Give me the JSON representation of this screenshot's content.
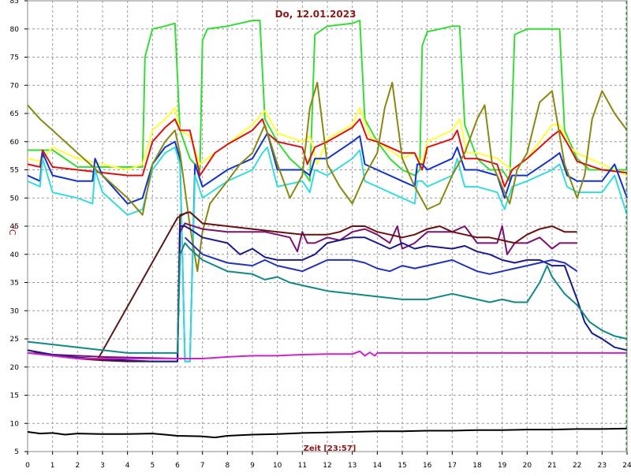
{
  "chart_data": {
    "type": "line",
    "title": "Do, 12.01.2023",
    "xlabel": "Zeit [23:57]",
    "ylabel": "°C",
    "xlim": [
      0,
      24
    ],
    "ylim": [
      5,
      85
    ],
    "x_ticks": [
      "0",
      "1",
      "2",
      "3",
      "4",
      "5",
      "6",
      "7",
      "8",
      "9",
      "10",
      "11",
      "12",
      "13",
      "14",
      "15",
      "16",
      "17",
      "18",
      "19",
      "20",
      "21",
      "22",
      "23",
      "24"
    ],
    "y_ticks": [
      "5",
      "10",
      "15",
      "20",
      "25",
      "30",
      "35",
      "40",
      "45",
      "50",
      "55",
      "60",
      "65",
      "70",
      "75",
      "80",
      "85"
    ],
    "grid": true,
    "series": [
      {
        "color": "#33dd33",
        "x": [
          0,
          1,
          2,
          3,
          4,
          4.6,
          4.7,
          5,
          5.5,
          5.9,
          6.1,
          6.5,
          6.9,
          7.0,
          7.2,
          8,
          9,
          9.3,
          9.5,
          10,
          10.5,
          11,
          11.3,
          11.5,
          12,
          13,
          13.3,
          13.5,
          14,
          14.5,
          15,
          15.5,
          15.7,
          15.8,
          16,
          16.5,
          17,
          17.3,
          17.5,
          18,
          18.5,
          19,
          19.3,
          19.5,
          20,
          21,
          21.3,
          21.5,
          22,
          22.5,
          23,
          23.5,
          24
        ],
        "y": [
          58.5,
          58.5,
          55.5,
          55.5,
          55.5,
          55.5,
          75,
          80,
          80.5,
          81,
          62,
          57,
          55,
          78,
          80,
          80.5,
          81.5,
          81.5,
          64,
          60,
          57,
          55,
          53,
          79,
          80.5,
          81,
          81.5,
          64,
          60,
          57,
          55,
          54,
          55,
          77,
          79.5,
          80,
          80.5,
          80.5,
          63,
          57,
          55,
          55,
          53,
          79,
          80,
          80,
          80,
          62,
          57,
          55,
          55,
          55,
          55
        ]
      },
      {
        "color": "#ffff33",
        "x": [
          0,
          0.5,
          1,
          2,
          3,
          4,
          4.6,
          5,
          5.5,
          5.9,
          6.1,
          6.5,
          6.9,
          7.5,
          8,
          9,
          9.5,
          10,
          11,
          11.3,
          11.6,
          12,
          13,
          13.3,
          13.7,
          14,
          15,
          15.5,
          15.8,
          16,
          17,
          17.3,
          17.6,
          18,
          18.8,
          19.1,
          19.4,
          20,
          21,
          21.3,
          21.7,
          22,
          23,
          23.5,
          24
        ],
        "y": [
          57,
          56.5,
          59,
          57,
          56,
          55,
          56,
          62,
          64,
          66,
          62,
          61,
          56,
          58,
          59.5,
          63,
          65.5,
          61.5,
          60,
          61,
          56,
          60.5,
          63,
          66,
          61,
          60,
          57,
          58,
          56,
          60,
          62,
          64,
          58,
          58,
          57,
          56,
          55,
          57,
          63,
          63,
          59,
          58,
          56,
          55,
          54
        ]
      },
      {
        "color": "#dd1111",
        "x": [
          0,
          0.5,
          0.6,
          1,
          2,
          3,
          4,
          4.6,
          5,
          5.5,
          5.9,
          6.1,
          6.5,
          6.9,
          7.5,
          8,
          9,
          9.4,
          9.6,
          10,
          11,
          11.2,
          11.5,
          12,
          13,
          13.3,
          13.6,
          14,
          15,
          15.5,
          15.8,
          16,
          17,
          17.2,
          17.5,
          18,
          18.8,
          19.1,
          19.4,
          20,
          21,
          21.3,
          21.7,
          22,
          23,
          24
        ],
        "y": [
          56,
          55.5,
          58.5,
          55.5,
          55,
          54.5,
          54,
          54,
          60,
          62.5,
          64,
          62,
          62,
          54,
          58,
          59.5,
          62,
          64,
          61.5,
          60,
          59,
          56,
          59,
          60,
          62.5,
          64,
          60.5,
          60,
          58,
          58,
          55,
          59,
          60.5,
          62,
          57,
          57,
          56,
          52,
          55,
          57,
          61,
          62,
          59,
          56.5,
          55,
          54.5
        ]
      },
      {
        "color": "#1133cc",
        "x": [
          0,
          0.5,
          0.6,
          1,
          2,
          2.6,
          2.7,
          3,
          4,
          4.6,
          5,
          5.5,
          5.9,
          6.1,
          6.3,
          6.5,
          6.7,
          7,
          8,
          9,
          9.4,
          9.6,
          10,
          11,
          11.3,
          11.5,
          12,
          13,
          13.3,
          13.5,
          14,
          15,
          15.5,
          15.6,
          15.8,
          16,
          17,
          17.2,
          17.5,
          18,
          18.8,
          19.1,
          19.4,
          20,
          21,
          21.3,
          21.6,
          22,
          23,
          23.5,
          24
        ],
        "y": [
          54,
          53,
          58,
          54,
          53,
          53,
          57,
          54,
          49,
          50,
          56,
          59,
          60,
          57,
          21,
          21,
          56,
          52,
          55,
          57,
          60,
          61.5,
          55,
          55,
          54,
          57,
          57,
          60,
          61,
          56,
          55,
          53,
          52,
          56,
          56,
          55,
          57,
          59,
          55,
          55,
          54,
          50,
          54,
          54,
          57,
          58,
          54,
          53,
          53,
          56,
          50
        ]
      },
      {
        "color": "#33dddd",
        "x": [
          0,
          0.5,
          0.6,
          1,
          2,
          2.6,
          2.7,
          3,
          4,
          4.6,
          5,
          5.5,
          5.9,
          6.1,
          6.3,
          6.5,
          6.7,
          7,
          8,
          9,
          9.4,
          9.6,
          10,
          11,
          11.3,
          11.5,
          12,
          13,
          13.3,
          13.5,
          14,
          15,
          15.5,
          15.6,
          15.8,
          16,
          17,
          17.2,
          17.5,
          18,
          18.8,
          19.1,
          19.4,
          20,
          21,
          21.3,
          21.6,
          22,
          23,
          23.5,
          24
        ],
        "y": [
          53,
          52,
          57,
          51,
          50,
          49,
          55,
          51,
          47,
          48,
          55,
          58,
          59,
          56,
          21,
          21,
          54,
          50,
          53,
          55,
          58,
          59,
          52,
          53,
          51,
          55,
          54,
          57,
          58.5,
          53,
          52,
          50,
          49,
          53,
          53,
          52,
          54,
          57,
          52,
          52,
          51,
          48,
          52,
          53,
          55,
          56,
          52,
          51,
          51,
          54,
          47
        ]
      },
      {
        "color": "#888811",
        "x": [
          0,
          0.5,
          1,
          2,
          3,
          4,
          4.6,
          5,
          5.5,
          5.9,
          6.1,
          6.5,
          6.8,
          7,
          7.3,
          8,
          8.5,
          9,
          9.5,
          10,
          10.5,
          11,
          11.3,
          11.6,
          12,
          12.5,
          13,
          13.5,
          14,
          14.3,
          14.6,
          15,
          15.5,
          16,
          16.5,
          17,
          17.5,
          18,
          18.3,
          18.6,
          19,
          19.3,
          19.6,
          20,
          20.5,
          21,
          21.5,
          22,
          22.3,
          22.6,
          23,
          23.5,
          24
        ],
        "y": [
          66.5,
          64,
          62,
          58,
          54,
          50,
          47,
          56,
          60,
          62,
          58,
          45,
          37,
          44,
          49,
          53,
          56,
          58,
          63,
          56,
          50,
          54,
          66,
          70.5,
          56,
          52,
          49,
          54,
          58,
          66,
          70.5,
          57,
          52,
          48,
          49,
          54,
          58,
          64,
          66.5,
          56,
          52,
          49,
          55,
          58,
          67,
          69,
          56,
          50,
          54,
          64,
          69,
          65,
          62
        ]
      },
      {
        "color": "#7a1070",
        "x": [
          0,
          1,
          2,
          3,
          4,
          5,
          6,
          6.1,
          6.3,
          7,
          8,
          9,
          9.5,
          10,
          10.5,
          10.8,
          11,
          11.2,
          11.5,
          12,
          12.5,
          13,
          13.5,
          14,
          14.5,
          14.8,
          15,
          15.5,
          16,
          16.5,
          17,
          17.5,
          18,
          18.8,
          19,
          19.2,
          19.5,
          20,
          20.5,
          21,
          21.3,
          21.5,
          22
        ],
        "y": [
          22.5,
          22.2,
          22,
          21.8,
          21.7,
          21.6,
          21.5,
          44,
          45.5,
          44.5,
          44,
          44,
          44,
          43.5,
          43,
          40.5,
          44,
          42,
          42,
          43,
          42.5,
          44,
          44.5,
          43.5,
          42,
          45,
          41,
          42,
          44,
          44,
          44,
          45,
          42,
          42,
          45,
          40,
          42,
          42,
          43,
          41,
          42,
          42,
          42
        ]
      },
      {
        "color": "#6a1010",
        "x": [
          0,
          1,
          2,
          3,
          4,
          5,
          6,
          6.1,
          6.5,
          7,
          8,
          9,
          10,
          11,
          12,
          12.5,
          13,
          13.5,
          14,
          14.5,
          15,
          15.5,
          16,
          16.5,
          17,
          17.5,
          18,
          18.5,
          19,
          19.5,
          20,
          20.5,
          21,
          21.5,
          22
        ],
        "y": [
          23,
          22,
          21.5,
          21.2,
          21,
          21,
          21,
          47,
          47.5,
          45.5,
          45,
          44.5,
          44,
          43.5,
          43.5,
          44,
          45,
          45,
          44,
          43.5,
          43,
          43.5,
          44.5,
          45,
          44,
          43.5,
          43,
          43,
          42.5,
          42,
          43.5,
          44.5,
          45,
          44,
          44
        ]
      },
      {
        "color": "#5a1a1a",
        "x": [
          2.8,
          6,
          6.4
        ],
        "y": [
          21.3,
          46.5,
          47.5
        ]
      },
      {
        "color": "#1a1a88",
        "x": [
          0,
          1,
          2,
          3,
          4,
          5,
          6,
          6.1,
          6.3,
          6.5,
          7,
          8,
          8.5,
          9,
          9.5,
          10,
          11,
          11.5,
          12,
          13,
          13.5,
          14,
          14.5,
          15,
          15.5,
          16,
          17,
          17.5,
          18,
          18.5,
          19,
          19.5,
          20,
          20.5,
          21,
          21.5,
          22,
          22.3,
          22.6,
          23,
          23.5,
          24
        ],
        "y": [
          23,
          22.2,
          21.7,
          21.4,
          21.2,
          21,
          21,
          45,
          45,
          44.5,
          43,
          42,
          40,
          41,
          39.5,
          39,
          39,
          40,
          42,
          43,
          43,
          42,
          41,
          42,
          41,
          41.5,
          41,
          41.5,
          40.5,
          40,
          39,
          38.5,
          39,
          39,
          38,
          38,
          32,
          28,
          26,
          25,
          23.5,
          23
        ]
      },
      {
        "color": "#2233bb",
        "x": [
          6.3,
          7,
          8,
          9,
          9.5,
          10,
          10.5,
          11,
          11.5,
          12,
          13,
          13.5,
          14,
          14.5,
          15,
          15.5,
          16,
          17,
          17.5,
          18,
          18.5,
          19,
          19.5,
          20,
          21,
          21.5,
          22
        ],
        "y": [
          43,
          40,
          38.5,
          38,
          39,
          38,
          37.5,
          37,
          38,
          39,
          39,
          38.5,
          37.5,
          37,
          38,
          37.5,
          38,
          39,
          38,
          37,
          36.5,
          37,
          37.5,
          38,
          39,
          38.5,
          37
        ]
      },
      {
        "color": "#118888",
        "x": [
          0,
          1,
          2,
          3,
          4,
          5,
          6,
          6.1,
          6.3,
          6.5,
          7,
          8,
          9,
          9.5,
          10,
          10.5,
          11,
          11.5,
          12,
          13,
          14,
          15,
          16,
          17,
          17.5,
          18,
          18.5,
          19,
          19.5,
          20,
          20.5,
          20.8,
          21,
          21.5,
          22,
          22.5,
          23,
          23.5,
          24
        ],
        "y": [
          24.5,
          24,
          23.5,
          23,
          22.5,
          22.5,
          22.5,
          40,
          42,
          41,
          39,
          37,
          36.5,
          35.5,
          36,
          35,
          34.5,
          34,
          33.5,
          33,
          32.5,
          32,
          32,
          33,
          32.5,
          32,
          31.5,
          32,
          31.5,
          31.5,
          35,
          38,
          36,
          33,
          31,
          28,
          26.5,
          25.5,
          25
        ]
      },
      {
        "color": "#cc22cc",
        "x": [
          0,
          1,
          2,
          3,
          4,
          5,
          6,
          6.5,
          7,
          8,
          9,
          10,
          11,
          12,
          13,
          13.3,
          13.5,
          13.7,
          13.9,
          14,
          15,
          16,
          17,
          18,
          19,
          20,
          21,
          22,
          23,
          24
        ],
        "y": [
          22.5,
          22,
          21.5,
          21.5,
          21.5,
          21.5,
          21.5,
          21.5,
          21.5,
          21.8,
          22,
          22,
          22.2,
          22.3,
          22.3,
          22.8,
          22,
          22.6,
          22,
          22.5,
          22.5,
          22.5,
          22.5,
          22.5,
          22.5,
          22.5,
          22.5,
          22.5,
          22.5,
          22.5
        ]
      },
      {
        "color": "#000000",
        "x": [
          0,
          0.5,
          1,
          1.5,
          2,
          3,
          4,
          5,
          5.5,
          6,
          7,
          7.5,
          8,
          9,
          10,
          11,
          12,
          13,
          14,
          15,
          16,
          17,
          18,
          19,
          20,
          21,
          22,
          23,
          24
        ],
        "y": [
          8.5,
          8.2,
          8.3,
          8,
          8.2,
          8.1,
          8.1,
          8.2,
          8,
          7.8,
          7.7,
          7.5,
          7.8,
          8,
          8.1,
          8.3,
          8.4,
          8.5,
          8.6,
          8.6,
          8.7,
          8.7,
          8.8,
          8.8,
          8.9,
          8.9,
          9,
          9,
          9.1
        ]
      }
    ]
  }
}
